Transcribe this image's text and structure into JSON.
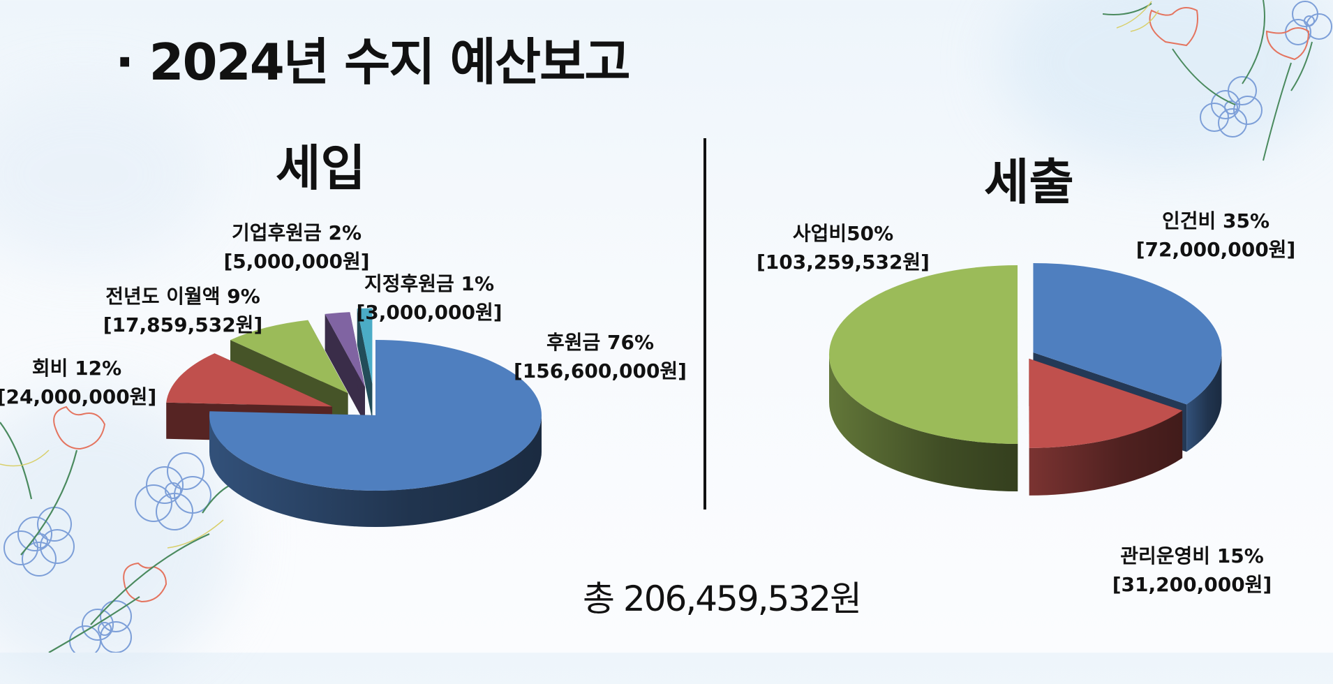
{
  "slide": {
    "bullet": "·",
    "title": "2024년 수지 예산보고",
    "total": "총 206,459,532원"
  },
  "colors": {
    "blue": "#4f7fbf",
    "red": "#c0504d",
    "green": "#9bbb59",
    "purple": "#8064a2",
    "teal": "#4bacc6"
  },
  "chart_data": [
    {
      "type": "pie",
      "title": "세입",
      "variant": "3d-exploded",
      "slices": [
        {
          "name": "후원금",
          "percent": "76%",
          "amount": "[156,600,000원]",
          "value": 156600000,
          "color": "#4f7fbf"
        },
        {
          "name": "회비",
          "percent": "12%",
          "amount": "[24,000,000원]",
          "value": 24000000,
          "color": "#c0504d"
        },
        {
          "name": "전년도 이월액",
          "percent": "9%",
          "amount": "[17,859,532원]",
          "value": 17859532,
          "color": "#9bbb59"
        },
        {
          "name": "기업후원금",
          "percent": "2%",
          "amount": "[5,000,000원]",
          "value": 5000000,
          "color": "#8064a2"
        },
        {
          "name": "지정후원금",
          "percent": "1%",
          "amount": "[3,000,000원]",
          "value": 3000000,
          "color": "#4bacc6"
        }
      ]
    },
    {
      "type": "pie",
      "title": "세출",
      "variant": "3d-exploded",
      "slices": [
        {
          "name": "인건비",
          "percent": "35%",
          "amount": "[72,000,000원]",
          "value": 72000000,
          "color": "#4f7fbf"
        },
        {
          "name": "관리운영비",
          "percent": "15%",
          "amount": "[31,200,000원]",
          "value": 31200000,
          "color": "#c0504d"
        },
        {
          "name": "사업비",
          "percent": "50%",
          "amount": "[103,259,532원]",
          "value": 103259532,
          "color": "#9bbb59"
        }
      ]
    }
  ],
  "labels": {
    "income": [
      {
        "line1": "후원금 76%",
        "line2": "[156,600,000원]"
      },
      {
        "line1": "회비 12%",
        "line2": "[24,000,000원]"
      },
      {
        "line1": "전년도 이월액 9%",
        "line2": "[17,859,532원]"
      },
      {
        "line1": "기업후원금 2%",
        "line2": "[5,000,000원]"
      },
      {
        "line1": "지정후원금 1%",
        "line2": "[3,000,000원]"
      }
    ],
    "expense": [
      {
        "line1": "인건비 35%",
        "line2": "[72,000,000원]"
      },
      {
        "line1": "관리운영비 15%",
        "line2": "[31,200,000원]"
      },
      {
        "line1": "사업비50%",
        "line2": "[103,259,532원]"
      }
    ]
  }
}
